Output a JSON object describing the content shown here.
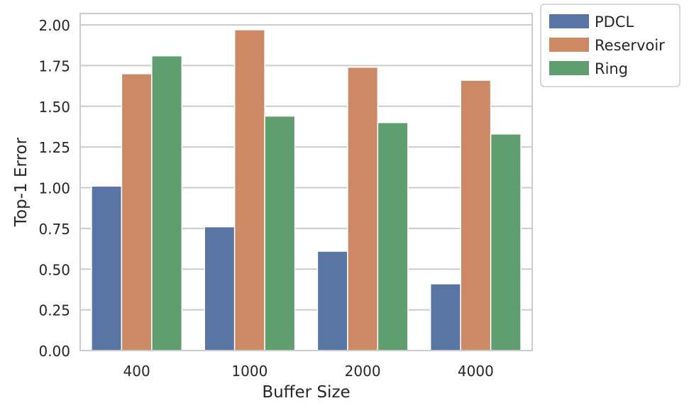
{
  "chart_data": {
    "type": "bar",
    "title": "",
    "xlabel": "Buffer Size",
    "ylabel": "Top-1 Error",
    "categories": [
      "400",
      "1000",
      "2000",
      "4000"
    ],
    "series": [
      {
        "name": "PDCL",
        "color": "#5875a4",
        "values": [
          1.01,
          0.76,
          0.61,
          0.41
        ]
      },
      {
        "name": "Reservoir",
        "color": "#cc8963",
        "values": [
          1.7,
          1.97,
          1.74,
          1.66
        ]
      },
      {
        "name": "Ring",
        "color": "#5f9e6e",
        "values": [
          1.81,
          1.44,
          1.4,
          1.33
        ]
      }
    ],
    "ylim": [
      0,
      2.07
    ],
    "yticks": [
      "0.00",
      "0.25",
      "0.50",
      "0.75",
      "1.00",
      "1.25",
      "1.50",
      "1.75",
      "2.00"
    ],
    "grid": true,
    "legend_position": "outside-top-right"
  }
}
